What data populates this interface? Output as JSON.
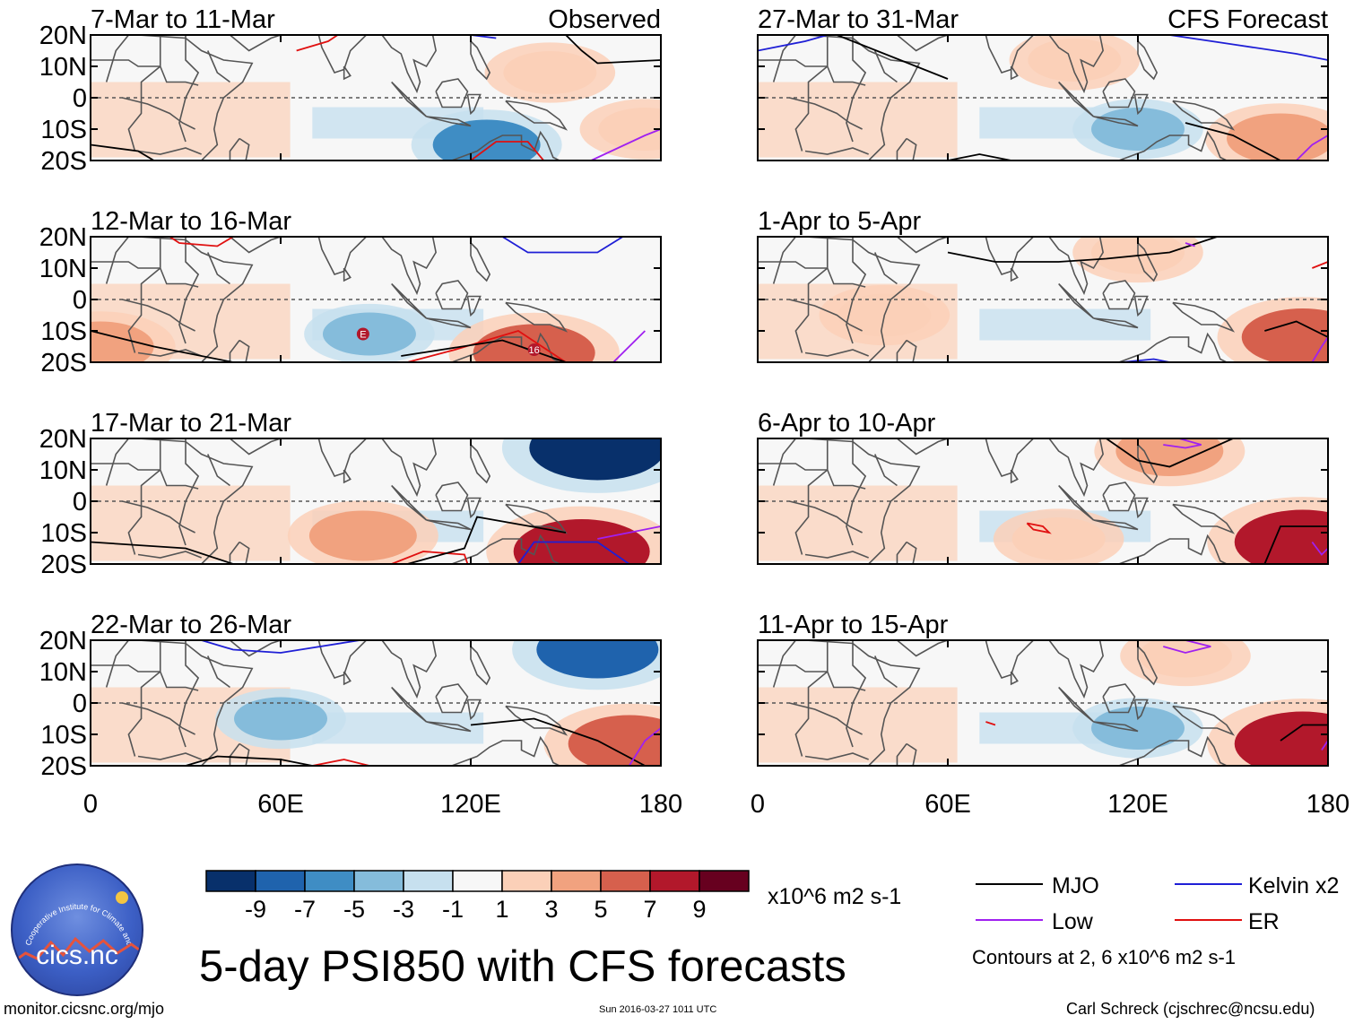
{
  "figure_title": "5-day PSI850 with CFS forecasts",
  "left_url": "monitor.cicsnc.org/mjo",
  "timestamp": "Sun 2016-03-27 1011 UTC",
  "author": "Carl Schreck (cjschrec@ncsu.edu)",
  "logo": {
    "text": "cics.nc",
    "arc_text": "Cooperative Institute for Climate and Satellites"
  },
  "colorbar": {
    "unit": "x10^6 m2 s-1",
    "tick_labels": [
      "-9",
      "-7",
      "-5",
      "-3",
      "-1",
      "1",
      "3",
      "5",
      "7",
      "9"
    ],
    "colors": [
      "#08306b",
      "#1f63ad",
      "#3f8dc4",
      "#85bcdb",
      "#c7e0ef",
      "#f7f7f7",
      "#fbd0b8",
      "#f1a27f",
      "#d6604d",
      "#b2182b",
      "#67001f"
    ]
  },
  "legend": {
    "items": [
      {
        "label": "MJO",
        "color": "#000000"
      },
      {
        "label": "Kelvin x2",
        "color": "#1f1fd6"
      },
      {
        "label": "Low",
        "color": "#a020f0"
      },
      {
        "label": "ER",
        "color": "#e01010"
      }
    ],
    "note": "Contours at 2, 6 x10^6 m2 s-1"
  },
  "chart_data": {
    "type": "heatmap",
    "variable": "PSI850 anomaly (5-day mean)",
    "x_range": [
      0,
      180
    ],
    "y_range": [
      -20,
      20
    ],
    "x_ticks": [
      "0",
      "60E",
      "120E",
      "180"
    ],
    "y_ticks": [
      "20N",
      "10N",
      "0",
      "10S",
      "20S"
    ],
    "observed_label": "Observed",
    "forecast_label": "CFS Forecast",
    "panels": [
      {
        "period": "7-Mar to 11-Mar",
        "source": "Observed",
        "fields": [
          {
            "lon": 125,
            "lat": -15,
            "v": -5
          },
          {
            "lon": 175,
            "lat": -10,
            "v": 3
          },
          {
            "lon": 145,
            "lat": 8,
            "v": 3
          }
        ],
        "labels": []
      },
      {
        "period": "12-Mar to 16-Mar",
        "source": "Observed",
        "fields": [
          {
            "lon": 140,
            "lat": -17,
            "v": 7
          },
          {
            "lon": 88,
            "lat": -11,
            "v": -3
          },
          {
            "lon": 3,
            "lat": -15,
            "v": 5
          }
        ],
        "labels": [
          {
            "lon": 86,
            "lat": -11,
            "text": "E"
          },
          {
            "lon": 140,
            "lat": -16,
            "text": "16"
          }
        ]
      },
      {
        "period": "17-Mar to 21-Mar",
        "source": "Observed",
        "fields": [
          {
            "lon": 160,
            "lat": 17,
            "v": -9
          },
          {
            "lon": 155,
            "lat": -16,
            "v": 9
          },
          {
            "lon": 86,
            "lat": -11,
            "v": 5
          }
        ],
        "labels": []
      },
      {
        "period": "22-Mar to 26-Mar",
        "source": "Observed",
        "fields": [
          {
            "lon": 160,
            "lat": 17,
            "v": -7
          },
          {
            "lon": 170,
            "lat": -13,
            "v": 7
          },
          {
            "lon": 60,
            "lat": -5,
            "v": -3
          }
        ],
        "labels": []
      },
      {
        "period": "27-Mar to 31-Mar",
        "source": "CFS Forecast",
        "fields": [
          {
            "lon": 120,
            "lat": -10,
            "v": -3
          },
          {
            "lon": 165,
            "lat": -13,
            "v": 5
          },
          {
            "lon": 100,
            "lat": 12,
            "v": 3
          }
        ],
        "labels": []
      },
      {
        "period": "1-Apr to 5-Apr",
        "source": "CFS Forecast",
        "fields": [
          {
            "lon": 172,
            "lat": -12,
            "v": 7
          },
          {
            "lon": 120,
            "lat": 15,
            "v": 3
          },
          {
            "lon": 40,
            "lat": -5,
            "v": 3
          }
        ],
        "labels": []
      },
      {
        "period": "6-Apr to 10-Apr",
        "source": "CFS Forecast",
        "fields": [
          {
            "lon": 172,
            "lat": -13,
            "v": 9
          },
          {
            "lon": 130,
            "lat": 16,
            "v": 5
          },
          {
            "lon": 95,
            "lat": -12,
            "v": 3
          }
        ],
        "labels": []
      },
      {
        "period": "11-Apr to 15-Apr",
        "source": "CFS Forecast",
        "fields": [
          {
            "lon": 172,
            "lat": -13,
            "v": 9
          },
          {
            "lon": 135,
            "lat": 15,
            "v": 3
          },
          {
            "lon": 120,
            "lat": -8,
            "v": -3
          }
        ],
        "labels": []
      }
    ]
  }
}
